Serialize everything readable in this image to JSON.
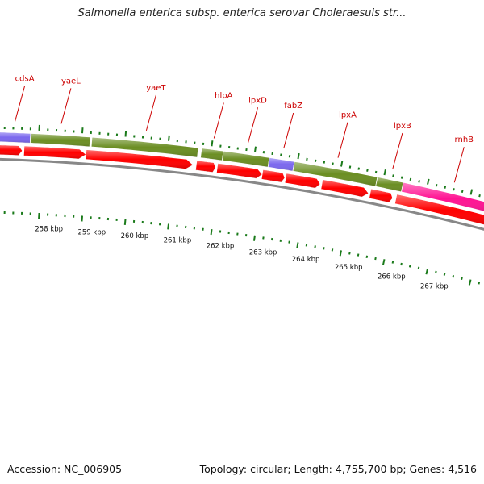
{
  "title": "Salmonella enterica subsp. enterica serovar Choleraesuis str...",
  "accession": "Accession: NC_006905",
  "topology": "Topology: circular; Length: 4,755,700 bp; Genes: 4,516",
  "colors": {
    "olive": "#6b8e23",
    "purple": "#7b68ee",
    "magenta": "#ff1493",
    "red": "#ff0000",
    "label": "#cc0000",
    "tick": "#1a7a1a",
    "backbone": "#888888"
  },
  "genes": [
    {
      "name": "cdsA",
      "color": "purple"
    },
    {
      "name": "yaeL",
      "color": "olive"
    },
    {
      "name": "yaeT",
      "color": "olive"
    },
    {
      "name": "hlpA",
      "color": "olive"
    },
    {
      "name": "lpxD",
      "color": "olive"
    },
    {
      "name": "fabZ",
      "color": "purple"
    },
    {
      "name": "lpxA",
      "color": "olive"
    },
    {
      "name": "lpxB",
      "color": "olive"
    },
    {
      "name": "rnhB",
      "color": "magenta"
    }
  ],
  "scale_labels": [
    "258 kbp",
    "259 kbp",
    "260 kbp",
    "261 kbp",
    "262 kbp",
    "263 kbp",
    "264 kbp",
    "265 kbp",
    "266 kbp",
    "267 kbp"
  ]
}
